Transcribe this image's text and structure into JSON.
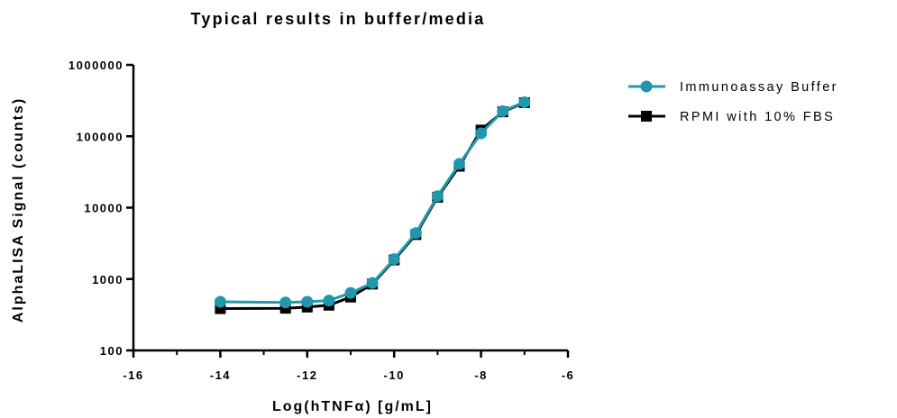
{
  "chart_data": {
    "type": "line",
    "title": "Typical results in buffer/media",
    "xlabel": "Log(hTNFα) [g/mL]",
    "ylabel": "AlphaLISA Signal (counts)",
    "xlim": [
      -16,
      -6
    ],
    "ylim": [
      100,
      1000000
    ],
    "yscale": "log",
    "x_ticks": [
      "-16",
      "-14",
      "-12",
      "-10",
      "-8",
      "-6"
    ],
    "y_ticks": [
      "100",
      "1000",
      "10000",
      "100000",
      "1000000"
    ],
    "grid": false,
    "legend_position": "right",
    "x": [
      -14,
      -12.5,
      -12,
      -11.5,
      -11,
      -10.5,
      -10,
      -9.5,
      -9,
      -8.5,
      -8,
      -7.5,
      -7
    ],
    "series": [
      {
        "name": "Immunoassay Buffer",
        "color": "#2197ae",
        "marker": "circle",
        "values": [
          480,
          470,
          480,
          500,
          640,
          880,
          1900,
          4400,
          14500,
          41000,
          110000,
          225000,
          300000
        ]
      },
      {
        "name": "RPMI with 10% FBS",
        "color": "#000000",
        "marker": "square",
        "values": [
          385,
          390,
          405,
          430,
          560,
          850,
          1850,
          4200,
          14000,
          38000,
          122000,
          220000,
          295000
        ]
      }
    ]
  }
}
